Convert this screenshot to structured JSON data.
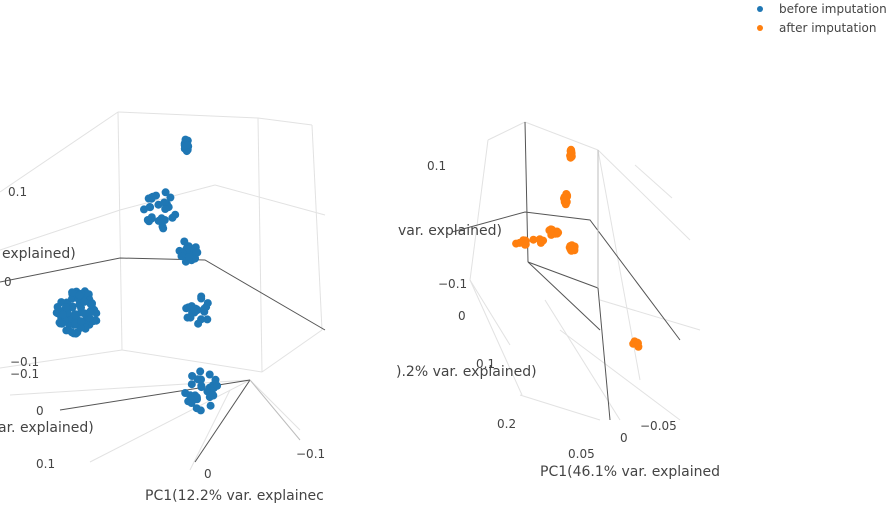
{
  "chart_data": [
    {
      "type": "scatter",
      "series": [
        {
          "name": "before imputation",
          "color": "#1f77b4"
        }
      ],
      "axes": {
        "pc1": {
          "title": "PC1(12.2% var. explainec",
          "ticks": [
            "0",
            "−0.1"
          ]
        },
        "pc2": {
          "title": "ar. explained)",
          "ticks": [
            "−0.1",
            "0",
            "0.1"
          ]
        },
        "pc3": {
          "title": "explained)",
          "ticks": [
            "0.1",
            "0",
            "−0.1"
          ]
        }
      },
      "clusters": [
        {
          "n": 18,
          "spread": 0.6
        },
        {
          "n": 26,
          "spread": 0.9
        },
        {
          "n": 20,
          "spread": 0.8
        },
        {
          "n": 80,
          "spread": 1.0
        },
        {
          "n": 22,
          "spread": 0.8
        },
        {
          "n": 34,
          "spread": 0.9
        }
      ]
    },
    {
      "type": "scatter",
      "series": [
        {
          "name": "after imputation",
          "color": "#ff7f0e"
        }
      ],
      "axes": {
        "pc1": {
          "title": "PC1(46.1% var. explained",
          "ticks": [
            "0.05",
            "0",
            "−0.05"
          ]
        },
        "pc2": {
          "title": ").2% var. explained)",
          "ticks": [
            "0.2",
            "0.1"
          ]
        },
        "pc3": {
          "title": "var. explained)",
          "ticks": [
            "0.1",
            "−0.1",
            "0"
          ]
        }
      },
      "clusters": [
        {
          "n": 14,
          "spread": 0.4
        },
        {
          "n": 12,
          "spread": 0.5
        },
        {
          "n": 12,
          "spread": 0.6
        },
        {
          "n": 14,
          "spread": 0.5
        },
        {
          "n": 10,
          "spread": 0.5
        },
        {
          "n": 7,
          "spread": 0.3
        }
      ]
    }
  ],
  "legend": {
    "items": [
      {
        "label": "before imputation",
        "color": "#1f77b4"
      },
      {
        "label": "after imputation",
        "color": "#ff7f0e"
      }
    ]
  }
}
